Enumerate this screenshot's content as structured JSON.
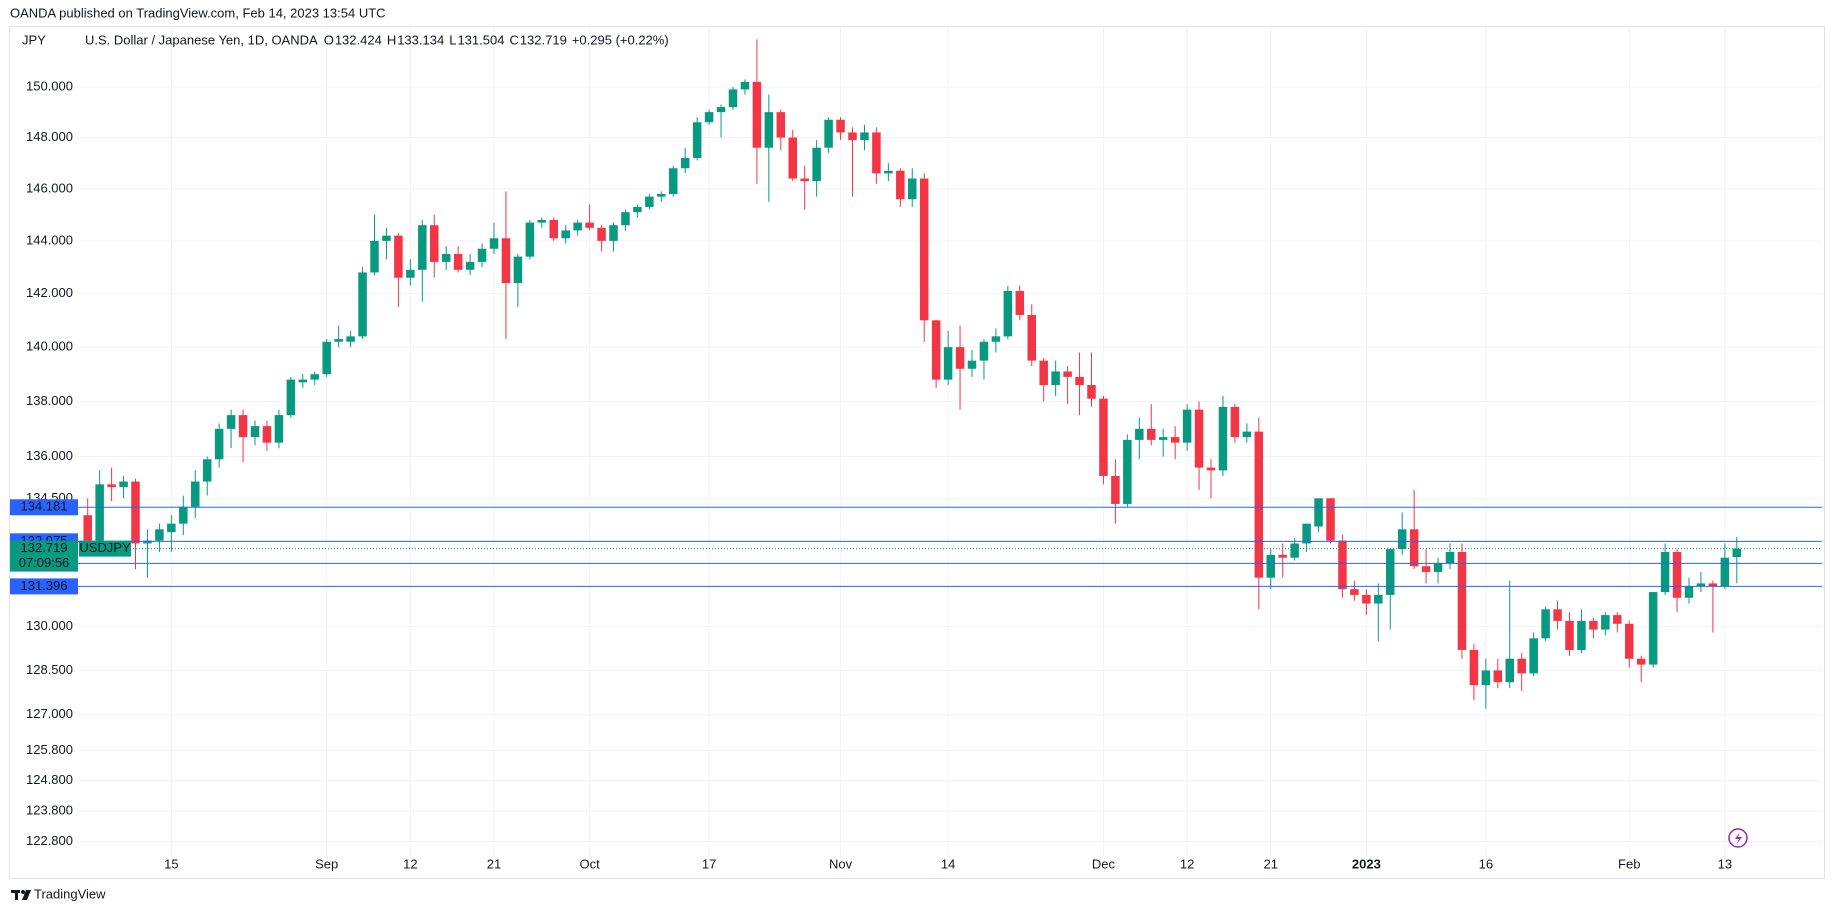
{
  "header": {
    "published": "OANDA published on TradingView.com, Feb 14, 2023 13:54 UTC"
  },
  "footer": {
    "brand": "TradingView"
  },
  "chart_data": {
    "type": "candlestick",
    "title": "U.S. Dollar / Japanese Yen, 1D, OANDA",
    "ylabel": "JPY",
    "ohlc": [
      {
        "key": "O",
        "value": 132.424
      },
      {
        "key": "H",
        "value": 133.134
      },
      {
        "key": "L",
        "value": 131.504
      },
      {
        "key": "C",
        "value": 132.719
      }
    ],
    "change": "+0.295 (+0.22%)",
    "log": true,
    "grid": true,
    "up_color": "#089981",
    "down_color": "#f23645",
    "ylim": [
      122.3,
      152.3
    ],
    "yticks": [
      {
        "value": 150,
        "label": "150.000"
      },
      {
        "value": 148,
        "label": "148.000"
      },
      {
        "value": 146,
        "label": "146.000"
      },
      {
        "value": 144,
        "label": "144.000"
      },
      {
        "value": 142,
        "label": "142.000"
      },
      {
        "value": 140,
        "label": "140.000"
      },
      {
        "value": 138,
        "label": "138.000"
      },
      {
        "value": 136,
        "label": "136.000"
      },
      {
        "value": 134.5,
        "label": "134.500"
      },
      {
        "value": 130,
        "label": "130.000"
      },
      {
        "value": 128.5,
        "label": "128.500"
      },
      {
        "value": 127,
        "label": "127.000"
      },
      {
        "value": 125.8,
        "label": "125.800"
      },
      {
        "value": 124.8,
        "label": "124.800"
      },
      {
        "value": 123.8,
        "label": "123.800"
      },
      {
        "value": 122.8,
        "label": "122.800"
      }
    ],
    "categories": [
      null,
      null,
      null,
      null,
      null,
      null,
      null,
      "15",
      null,
      null,
      null,
      null,
      null,
      null,
      null,
      null,
      null,
      null,
      null,
      null,
      "Sep",
      null,
      null,
      null,
      null,
      null,
      null,
      "12",
      null,
      null,
      null,
      null,
      null,
      null,
      "21",
      null,
      null,
      null,
      null,
      null,
      null,
      null,
      "Oct",
      null,
      null,
      null,
      null,
      null,
      null,
      null,
      null,
      null,
      "17",
      null,
      null,
      null,
      null,
      null,
      null,
      null,
      null,
      null,
      null,
      "Nov",
      null,
      null,
      null,
      null,
      null,
      null,
      null,
      null,
      "14",
      null,
      null,
      null,
      null,
      null,
      null,
      null,
      null,
      null,
      null,
      null,
      null,
      "Dec",
      null,
      null,
      null,
      null,
      null,
      null,
      "12",
      null,
      null,
      null,
      null,
      null,
      null,
      "21",
      null,
      null,
      null,
      null,
      null,
      null,
      null,
      "2023",
      null,
      null,
      null,
      null,
      null,
      null,
      null,
      null,
      null,
      "16",
      null,
      null,
      null,
      null,
      null,
      null,
      null,
      null,
      null,
      null,
      null,
      "Feb",
      null,
      null,
      null,
      null,
      null,
      null,
      null,
      "13",
      null
    ],
    "open": [
      133.9,
      133.0,
      135.0,
      134.9,
      135.1,
      132.9,
      133.0,
      133.3,
      133.6,
      134.2,
      135.1,
      135.9,
      137.0,
      137.5,
      136.7,
      137.1,
      136.5,
      137.5,
      138.7,
      138.8,
      139.0,
      140.2,
      140.2,
      140.4,
      142.8,
      144.0,
      144.2,
      142.6,
      142.9,
      144.6,
      143.2,
      143.5,
      142.9,
      143.2,
      143.7,
      144.1,
      142.4,
      143.4,
      144.7,
      144.8,
      144.1,
      144.4,
      144.7,
      144.5,
      144.0,
      144.6,
      145.1,
      145.3,
      145.7,
      145.8,
      146.8,
      147.2,
      148.6,
      149.0,
      149.2,
      149.9,
      150.2,
      147.6,
      149.0,
      148.0,
      146.4,
      146.3,
      147.6,
      148.7,
      148.2,
      147.9,
      148.2,
      146.6,
      146.7,
      145.6,
      146.4,
      141.0,
      138.8,
      140.0,
      139.2,
      139.5,
      140.2,
      140.4,
      142.1,
      141.2,
      139.5,
      138.6,
      139.1,
      138.9,
      138.6,
      138.1,
      135.3,
      134.3,
      136.6,
      137.0,
      136.6,
      136.7,
      136.5,
      137.7,
      135.6,
      135.5,
      137.8,
      136.7,
      136.9,
      131.7,
      132.5,
      132.4,
      132.9,
      133.5,
      134.5,
      133.0,
      131.3,
      131.1,
      130.8,
      131.1,
      132.7,
      133.4,
      132.1,
      131.9,
      132.2,
      132.6,
      129.2,
      128.0,
      128.5,
      128.1,
      128.9,
      128.4,
      129.6,
      130.6,
      130.2,
      129.2,
      130.2,
      129.9,
      130.4,
      130.1,
      128.9,
      128.7,
      131.2,
      132.6,
      131.0,
      131.4,
      131.5,
      131.4,
      132.424
    ],
    "high": [
      134.5,
      135.5,
      135.6,
      135.3,
      135.2,
      133.4,
      133.6,
      133.9,
      134.6,
      135.5,
      136.0,
      137.2,
      137.7,
      137.7,
      137.3,
      137.3,
      137.7,
      138.9,
      139.0,
      139.1,
      140.3,
      140.8,
      140.6,
      143.0,
      145.0,
      144.5,
      144.3,
      143.3,
      144.8,
      145.0,
      143.8,
      143.8,
      143.5,
      143.9,
      144.7,
      145.9,
      143.5,
      144.8,
      144.9,
      144.9,
      144.6,
      144.8,
      145.4,
      144.6,
      144.7,
      145.2,
      145.4,
      145.8,
      145.9,
      146.9,
      147.6,
      148.8,
      149.1,
      149.3,
      150.0,
      150.3,
      151.9,
      149.7,
      149.1,
      148.3,
      146.9,
      147.9,
      148.8,
      148.8,
      148.4,
      148.5,
      148.4,
      147.0,
      146.8,
      146.8,
      146.6,
      141.0,
      140.6,
      140.8,
      139.9,
      140.3,
      140.7,
      142.3,
      142.3,
      141.6,
      139.6,
      139.5,
      139.3,
      139.8,
      139.8,
      138.2,
      135.9,
      136.8,
      137.4,
      137.9,
      137.0,
      137.1,
      137.9,
      138.0,
      135.9,
      138.2,
      137.9,
      137.2,
      137.4,
      132.7,
      132.9,
      133.1,
      133.6,
      134.5,
      134.5,
      133.2,
      131.6,
      131.3,
      131.5,
      132.7,
      134.0,
      134.8,
      132.7,
      132.4,
      132.9,
      132.9,
      129.4,
      128.9,
      128.9,
      131.6,
      129.1,
      129.8,
      130.7,
      130.9,
      130.5,
      130.6,
      130.3,
      130.5,
      130.5,
      130.2,
      129.0,
      131.2,
      132.9,
      132.7,
      131.7,
      131.9,
      131.6,
      132.9,
      133.134
    ],
    "low": [
      132.9,
      132.5,
      134.4,
      134.5,
      132.0,
      131.7,
      132.6,
      132.6,
      133.2,
      133.8,
      134.6,
      135.6,
      136.3,
      135.8,
      136.4,
      136.2,
      136.3,
      137.4,
      138.5,
      138.6,
      138.9,
      140.0,
      140.0,
      140.3,
      142.7,
      143.3,
      141.5,
      142.3,
      141.7,
      142.6,
      142.9,
      142.8,
      142.7,
      143.0,
      143.5,
      140.3,
      141.5,
      143.3,
      144.5,
      144.0,
      143.9,
      144.2,
      144.4,
      143.6,
      143.6,
      144.4,
      144.9,
      145.2,
      145.5,
      145.7,
      146.6,
      147.1,
      148.5,
      148.0,
      149.1,
      149.7,
      146.2,
      145.5,
      147.5,
      146.3,
      145.2,
      145.7,
      147.4,
      147.9,
      145.7,
      147.5,
      146.2,
      146.3,
      145.3,
      145.3,
      140.2,
      138.5,
      138.6,
      137.7,
      138.9,
      138.8,
      139.8,
      140.3,
      141.0,
      139.3,
      138.0,
      138.2,
      137.9,
      137.5,
      137.8,
      135.0,
      133.6,
      134.2,
      135.9,
      136.4,
      136.0,
      135.9,
      136.2,
      134.8,
      134.5,
      135.3,
      136.5,
      136.5,
      130.6,
      131.3,
      131.7,
      132.3,
      132.6,
      133.3,
      132.9,
      131.0,
      130.9,
      130.4,
      129.5,
      129.9,
      132.5,
      132.0,
      131.5,
      131.5,
      132.0,
      128.9,
      127.5,
      127.2,
      127.9,
      127.9,
      127.8,
      128.3,
      129.5,
      129.9,
      129.0,
      129.1,
      129.6,
      129.7,
      129.8,
      128.6,
      128.1,
      128.6,
      131.1,
      130.5,
      130.8,
      131.2,
      129.8,
      131.3,
      131.504
    ],
    "close": [
      133.0,
      135.0,
      134.9,
      135.1,
      132.9,
      133.0,
      133.4,
      133.6,
      134.2,
      135.1,
      135.9,
      137.0,
      137.5,
      136.7,
      137.1,
      136.5,
      137.5,
      138.8,
      138.8,
      139.0,
      140.2,
      140.3,
      140.4,
      142.8,
      144.0,
      144.2,
      142.6,
      142.9,
      144.6,
      143.2,
      143.5,
      142.9,
      143.2,
      143.7,
      144.1,
      142.4,
      143.4,
      144.7,
      144.8,
      144.1,
      144.4,
      144.7,
      144.5,
      144.0,
      144.6,
      145.1,
      145.3,
      145.7,
      145.8,
      146.8,
      147.2,
      148.6,
      149.0,
      149.2,
      149.9,
      150.2,
      147.6,
      149.0,
      148.0,
      146.4,
      146.3,
      147.6,
      148.7,
      148.2,
      147.9,
      148.2,
      146.6,
      146.7,
      145.6,
      146.4,
      141.0,
      138.8,
      140.0,
      139.2,
      139.5,
      140.2,
      140.4,
      142.1,
      141.2,
      139.5,
      138.6,
      139.1,
      138.9,
      138.6,
      138.1,
      135.3,
      134.3,
      136.6,
      137.0,
      136.6,
      136.7,
      136.5,
      137.7,
      135.6,
      135.5,
      137.8,
      136.7,
      136.9,
      131.7,
      132.5,
      132.4,
      132.9,
      133.6,
      134.5,
      133.0,
      131.3,
      131.1,
      130.8,
      131.1,
      132.7,
      133.4,
      132.1,
      131.9,
      132.2,
      132.6,
      129.2,
      128.0,
      128.5,
      128.1,
      128.9,
      128.4,
      129.6,
      130.6,
      130.2,
      129.2,
      130.2,
      129.9,
      130.4,
      130.1,
      128.9,
      128.7,
      131.2,
      132.6,
      131.0,
      131.4,
      131.5,
      131.4,
      132.4,
      132.719
    ],
    "levels": [
      {
        "value": 134.181,
        "color": "#2962ff"
      },
      {
        "value": 132.975,
        "color": "#2962ff"
      },
      {
        "value": 132.201,
        "color": "#2962ff"
      },
      {
        "value": 131.396,
        "color": "#2962ff"
      }
    ],
    "last_price": {
      "value": 132.719,
      "symbol": "USDJPY",
      "countdown": "07:09:56",
      "color": "#089981"
    }
  }
}
